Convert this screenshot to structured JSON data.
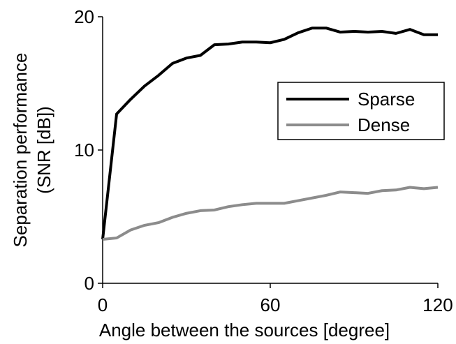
{
  "chart_data": {
    "type": "line",
    "xlabel": "Angle between the sources [degree]",
    "ylabel": [
      "Separation performance",
      "(SNR [dB])"
    ],
    "x": [
      0,
      5,
      10,
      15,
      20,
      25,
      30,
      35,
      40,
      45,
      50,
      55,
      60,
      65,
      70,
      75,
      80,
      85,
      90,
      95,
      100,
      105,
      110,
      115,
      120
    ],
    "series": [
      {
        "name": "Sparse",
        "color": "#000000",
        "values": [
          3.3,
          12.7,
          13.8,
          14.8,
          15.6,
          16.5,
          16.9,
          17.1,
          17.9,
          17.95,
          18.1,
          18.1,
          18.05,
          18.3,
          18.8,
          19.15,
          19.15,
          18.85,
          18.9,
          18.85,
          18.9,
          18.75,
          19.05,
          18.65,
          18.65
        ]
      },
      {
        "name": "Dense",
        "color": "#8c8c8c",
        "values": [
          3.3,
          3.4,
          4.0,
          4.35,
          4.55,
          4.95,
          5.25,
          5.45,
          5.5,
          5.75,
          5.9,
          6.0,
          6.0,
          6.0,
          6.2,
          6.4,
          6.6,
          6.85,
          6.8,
          6.75,
          6.95,
          7.0,
          7.2,
          7.1,
          7.2
        ]
      }
    ],
    "xlim": [
      0,
      120
    ],
    "xticks": [
      0,
      60,
      120
    ],
    "ylim": [
      0,
      20
    ],
    "yticks": [
      0,
      10,
      20
    ],
    "legend": "upper right"
  }
}
